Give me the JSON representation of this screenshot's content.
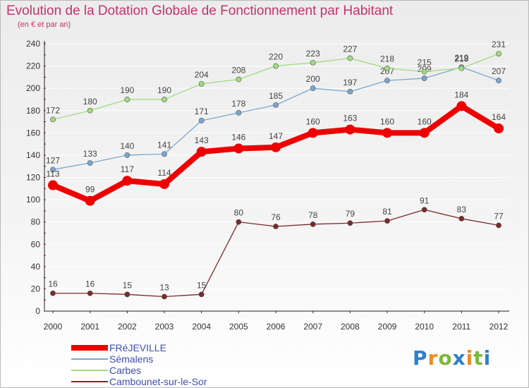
{
  "title": "Evolution de la Dotation Globale de Fonctionnement par Habitant",
  "subtitle": "(en € et par an)",
  "logo": {
    "letters": [
      "P",
      "r",
      "o",
      "x",
      "i",
      "t",
      "i"
    ],
    "colors": [
      "#2f7fc8",
      "#f08a1c",
      "#7cb83a",
      "#2f7fc8",
      "#f08a1c",
      "#7cb83a",
      "#2f7fc8"
    ]
  },
  "chart_data": {
    "type": "line",
    "x": [
      "2000",
      "2001",
      "2002",
      "2003",
      "2004",
      "2005",
      "2006",
      "2007",
      "2008",
      "2009",
      "2010",
      "2011",
      "2012"
    ],
    "ylim": [
      0,
      240
    ],
    "yticks": [
      0,
      20,
      40,
      60,
      80,
      100,
      120,
      140,
      160,
      180,
      200,
      220,
      240
    ],
    "grid": true,
    "legend": "bottom-left",
    "series": [
      {
        "name": "FRéJEVILLE",
        "color": "#ee0000",
        "emphasis": true,
        "values": [
          113,
          99,
          117,
          114,
          143,
          146,
          147,
          160,
          163,
          160,
          160,
          184,
          164
        ]
      },
      {
        "name": "Sémalens",
        "color": "#7ba7cf",
        "values": [
          127,
          133,
          140,
          141,
          171,
          178,
          185,
          200,
          197,
          207,
          209,
          219,
          207
        ]
      },
      {
        "name": "Carbes",
        "color": "#9fdc7e",
        "values": [
          172,
          180,
          190,
          190,
          204,
          208,
          220,
          223,
          227,
          218,
          215,
          218,
          231
        ]
      },
      {
        "name": "Cambounet-sur-le-Sor",
        "color": "#7a2a2a",
        "values": [
          16,
          16,
          15,
          13,
          15,
          80,
          76,
          78,
          79,
          81,
          91,
          83,
          77
        ]
      }
    ]
  }
}
